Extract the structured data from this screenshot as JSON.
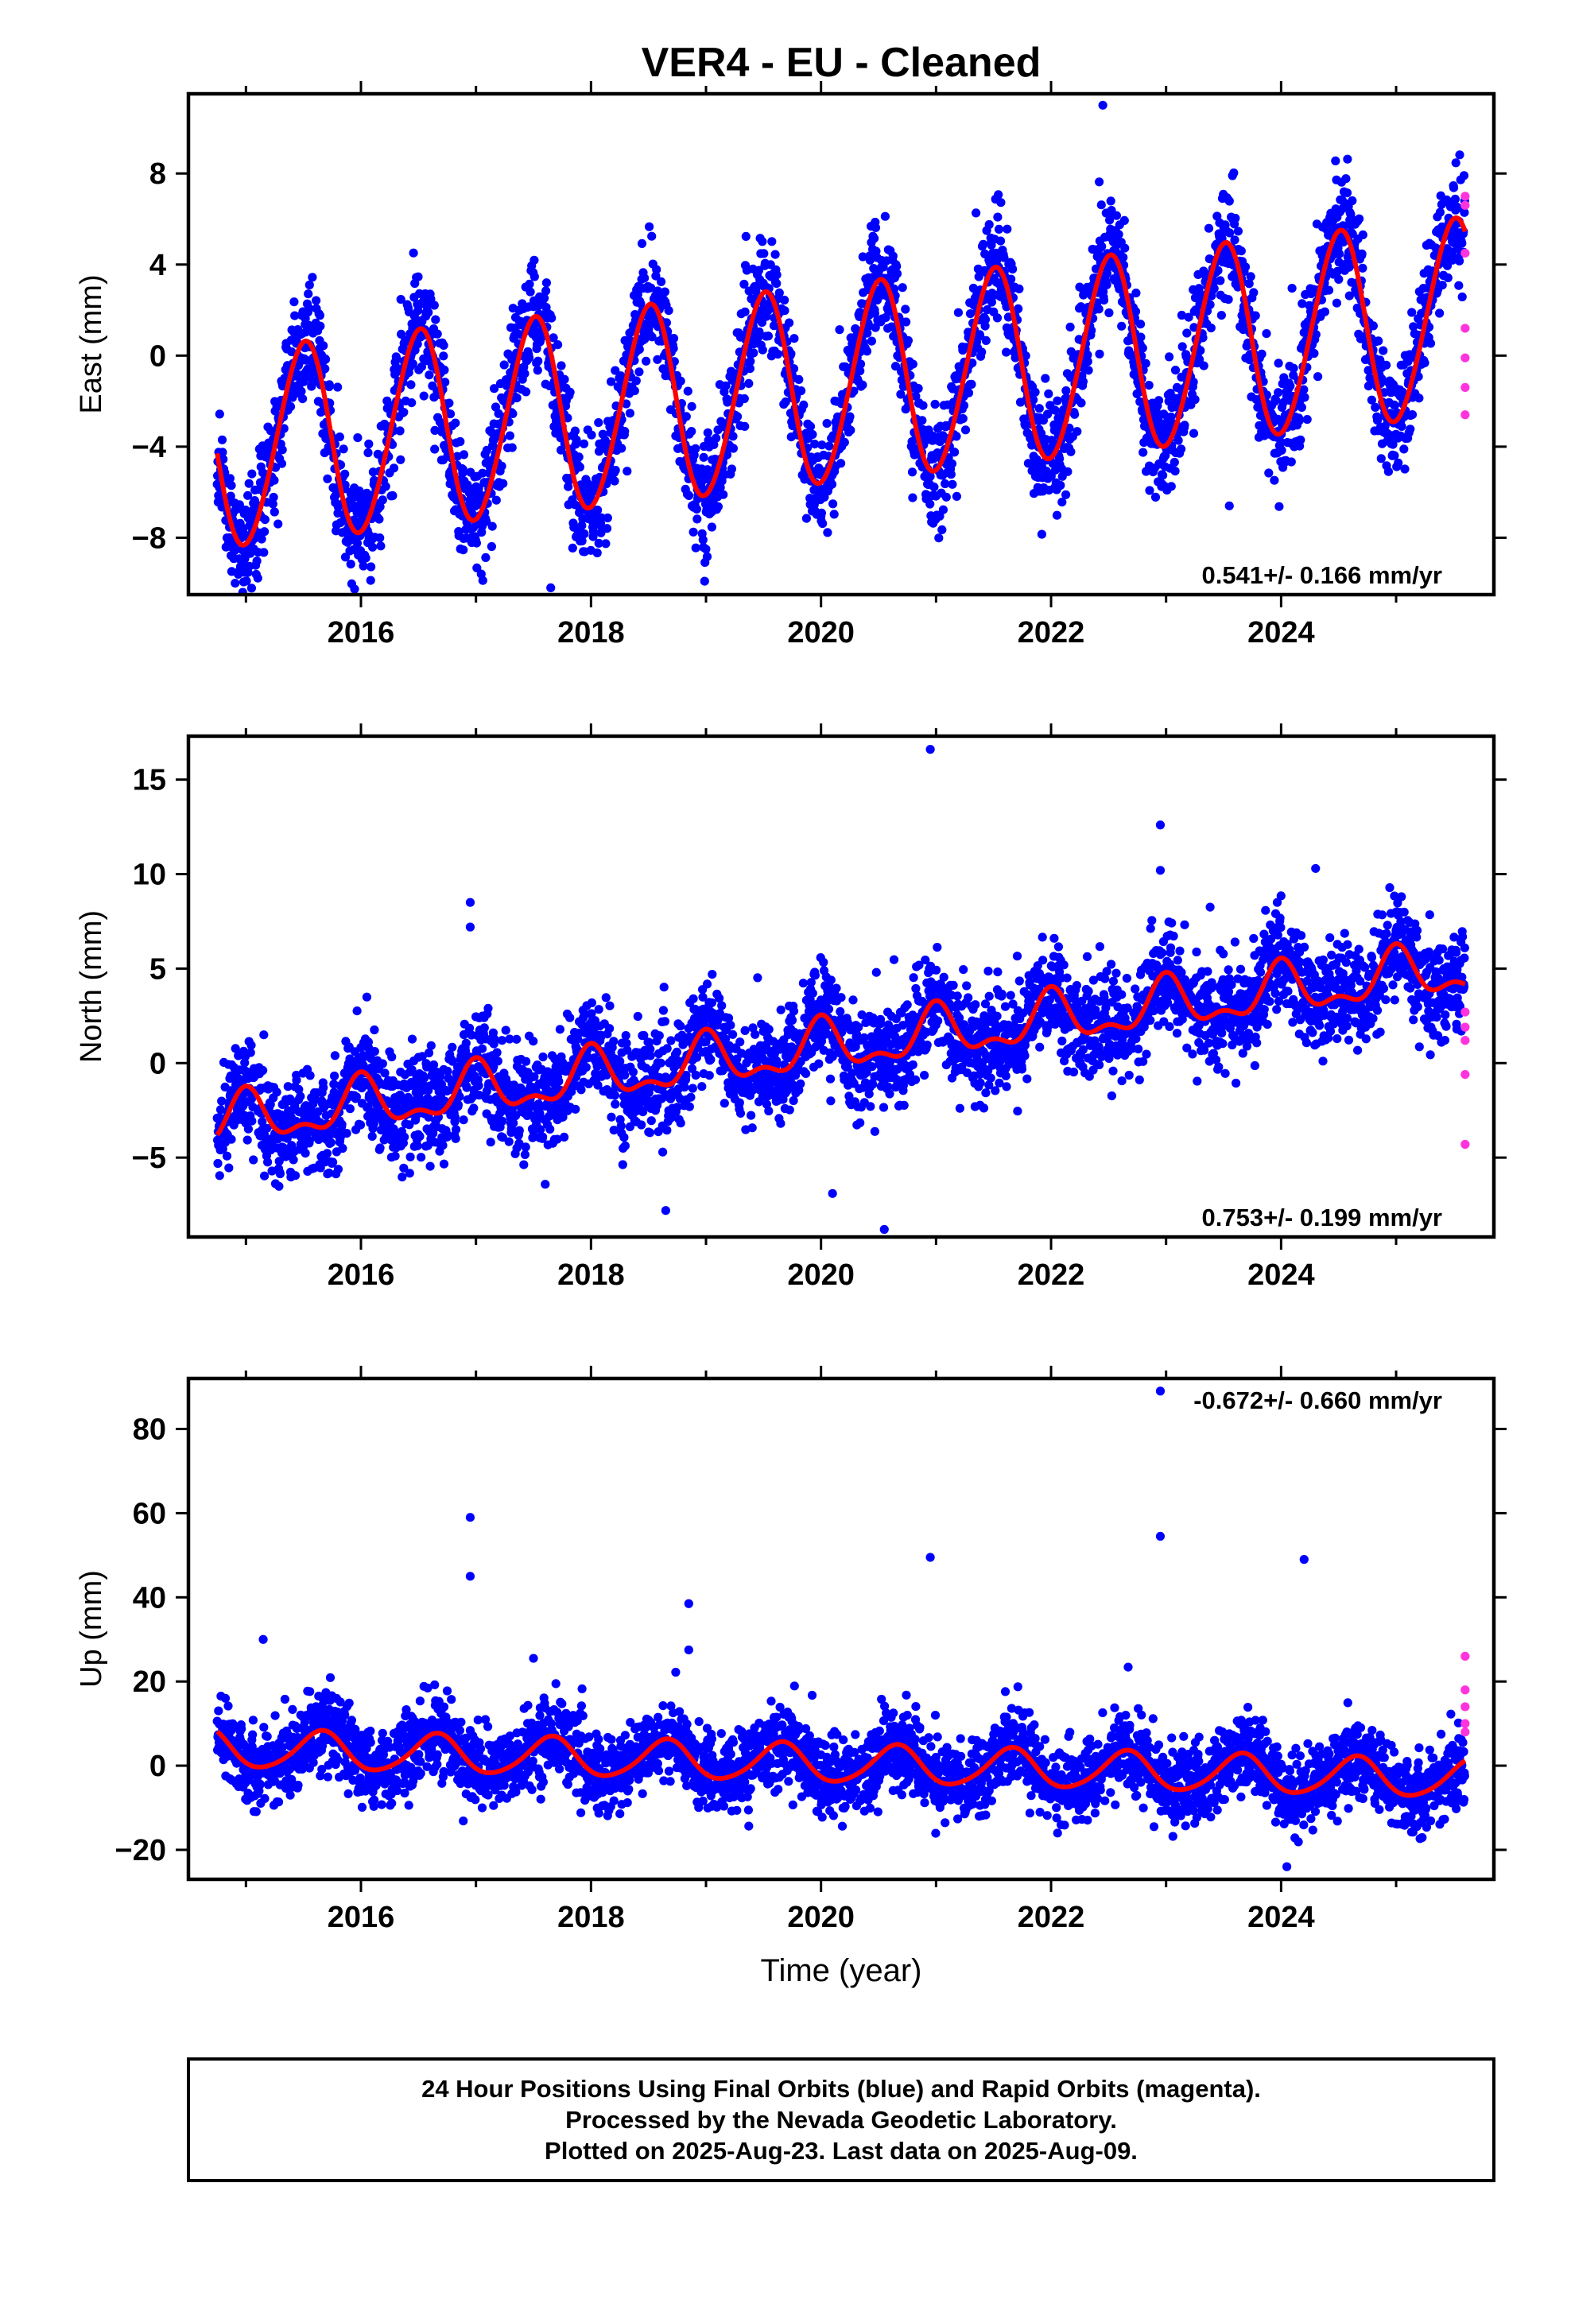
{
  "title": "VER4  - EU - Cleaned",
  "footer": {
    "lines": [
      "24 Hour Positions Using Final Orbits (blue) and Rapid Orbits (magenta).",
      "Processed by the Nevada Geodetic Laboratory.",
      "Plotted on 2025-Aug-23. Last data on 2025-Aug-09."
    ]
  },
  "colors": {
    "final_orbits": "#0000ff",
    "rapid_orbits": "#ff33dd",
    "model": "#ff0000",
    "frame": "#000000"
  },
  "chart_data": [
    {
      "type": "scatter",
      "name": "east",
      "ylabel": "East (mm)",
      "xlabel": "",
      "xlim": [
        2014.5,
        2025.85
      ],
      "ylim": [
        -10.5,
        11.5
      ],
      "xticks": [
        2016,
        2018,
        2020,
        2022,
        2024
      ],
      "yticks": [
        -8,
        -4,
        0,
        4,
        8
      ],
      "yticklabels": [
        "−8",
        "−4",
        "0",
        "4",
        "8"
      ],
      "rate_label": "0.541+/- 0.166 mm/yr",
      "rate_position": "bottom-right",
      "data_start": 2014.75,
      "data_end": 2025.6,
      "model": {
        "t0": 2014.75,
        "y0": -4.2,
        "trend": 0.541,
        "annual_amp": 4.3,
        "annual_peak": 0.5,
        "semiannual_amp": 0.3,
        "semiannual_peak": 0.1,
        "noise_sd": 1.25
      },
      "outliers": [
        [
          2017.65,
          -10.2
        ],
        [
          2022.45,
          11.0
        ],
        [
          2023.55,
          -6.6
        ],
        [
          2015.0,
          -9.3
        ]
      ],
      "rapid_points": [
        [
          2025.6,
          7.0
        ],
        [
          2025.6,
          6.6
        ],
        [
          2025.6,
          4.5
        ],
        [
          2025.6,
          1.2
        ],
        [
          2025.6,
          -0.1
        ],
        [
          2025.6,
          -1.4
        ],
        [
          2025.6,
          -2.6
        ]
      ]
    },
    {
      "type": "scatter",
      "name": "north",
      "ylabel": "North (mm)",
      "xlabel": "",
      "xlim": [
        2014.5,
        2025.85
      ],
      "ylim": [
        -9.2,
        17.3
      ],
      "xticks": [
        2016,
        2018,
        2020,
        2022,
        2024
      ],
      "yticks": [
        -5,
        0,
        5,
        10,
        15
      ],
      "yticklabels": [
        "−5",
        "0",
        "5",
        "10",
        "15"
      ],
      "rate_label": "0.753+/- 0.199 mm/yr",
      "rate_position": "bottom-right",
      "data_start": 2014.75,
      "data_end": 2025.6,
      "model": {
        "t0": 2014.75,
        "y0": -3.2,
        "trend": 0.753,
        "annual_amp": 1.2,
        "annual_peak": 0.0,
        "semiannual_amp": 0.6,
        "semiannual_peak": 0.0,
        "noise_sd": 1.35
      },
      "outliers": [
        [
          2016.95,
          8.5
        ],
        [
          2016.95,
          7.2
        ],
        [
          2020.95,
          16.6
        ],
        [
          2022.95,
          12.6
        ],
        [
          2022.95,
          10.2
        ],
        [
          2024.3,
          10.3
        ],
        [
          2020.55,
          -8.8
        ],
        [
          2018.65,
          -7.8
        ],
        [
          2020.1,
          -6.9
        ]
      ],
      "rapid_points": [
        [
          2025.6,
          2.7
        ],
        [
          2025.6,
          1.9
        ],
        [
          2025.6,
          1.2
        ],
        [
          2025.6,
          -0.6
        ],
        [
          2025.6,
          -4.3
        ]
      ]
    },
    {
      "type": "scatter",
      "name": "up",
      "ylabel": "Up (mm)",
      "xlabel": "Time (year)",
      "xlim": [
        2014.5,
        2025.85
      ],
      "ylim": [
        -27,
        92
      ],
      "xticks": [
        2016,
        2018,
        2020,
        2022,
        2024
      ],
      "yticks": [
        -20,
        0,
        20,
        40,
        60,
        80
      ],
      "yticklabels": [
        "−20",
        "0",
        "20",
        "40",
        "60",
        "80"
      ],
      "rate_label": "-0.672+/- 0.660 mm/yr",
      "rate_position": "top-right",
      "data_start": 2014.75,
      "data_end": 2025.6,
      "model": {
        "t0": 2014.75,
        "y0": 4.0,
        "trend": -0.672,
        "annual_amp": 4.5,
        "annual_peak": 0.65,
        "semiannual_amp": 0.6,
        "semiannual_peak": 0.2,
        "noise_sd": 4.6
      },
      "outliers": [
        [
          2016.95,
          59
        ],
        [
          2016.95,
          45
        ],
        [
          2018.85,
          38.5
        ],
        [
          2018.85,
          27.5
        ],
        [
          2020.95,
          49.5
        ],
        [
          2022.95,
          54.5
        ],
        [
          2024.2,
          49
        ],
        [
          2022.95,
          89
        ],
        [
          2024.05,
          -24
        ],
        [
          2017.5,
          25.5
        ],
        [
          2015.15,
          30
        ]
      ],
      "rapid_points": [
        [
          2025.6,
          26
        ],
        [
          2025.6,
          18
        ],
        [
          2025.6,
          14
        ],
        [
          2025.6,
          10
        ],
        [
          2025.6,
          8
        ]
      ]
    }
  ]
}
